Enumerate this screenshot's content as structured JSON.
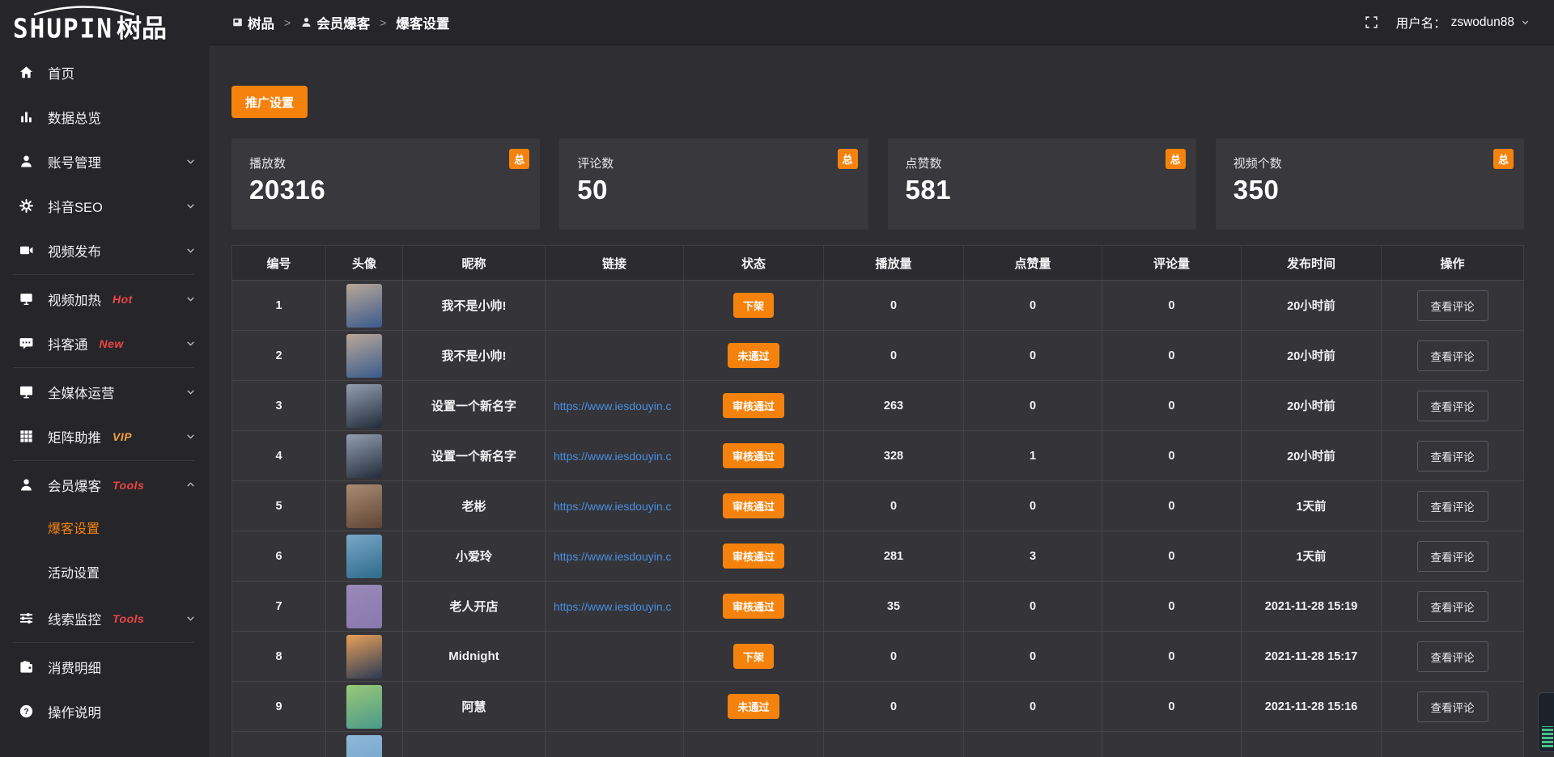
{
  "app": {
    "logo_en": "SHUPIN",
    "logo_cn": "树品"
  },
  "topbar": {
    "breadcrumb": [
      {
        "key": "shupin",
        "label": "树品",
        "icon": "dashboard-icon"
      },
      {
        "key": "member-baoke",
        "label": "会员爆客",
        "icon": "person-icon"
      },
      {
        "key": "baoke-settings",
        "label": "爆客设置",
        "icon": ""
      }
    ],
    "username_label": "用户名：",
    "username": "zswodun88"
  },
  "sidebar": {
    "items": [
      {
        "key": "home",
        "icon": "home-icon",
        "label": "首页"
      },
      {
        "key": "data-overview",
        "icon": "bar-chart-icon",
        "label": "数据总览"
      },
      {
        "key": "account-management",
        "icon": "user-icon",
        "label": "账号管理",
        "chevron": "down"
      },
      {
        "key": "douyin-seo",
        "icon": "gear-icon",
        "label": "抖音SEO",
        "chevron": "down"
      },
      {
        "key": "video-publish",
        "icon": "video-camera-icon",
        "label": "视频发布",
        "chevron": "down",
        "divider_after": true
      },
      {
        "key": "video-heat",
        "icon": "screen-icon",
        "label": "视频加热",
        "badge": "Hot",
        "badge_color": "#ee4545",
        "chevron": "down"
      },
      {
        "key": "douketong",
        "icon": "chat-bubble-icon",
        "label": "抖客通",
        "badge": "New",
        "badge_color": "#ee4545",
        "chevron": "down",
        "divider_after": true
      },
      {
        "key": "media-ops",
        "icon": "monitor-icon",
        "label": "全媒体运营",
        "chevron": "down"
      },
      {
        "key": "matrix-boost",
        "icon": "grid-icon",
        "label": "矩阵助推",
        "badge": "VIP",
        "badge_color": "#f2a33c",
        "chevron": "down",
        "divider_after": true
      },
      {
        "key": "member-baoke",
        "icon": "member-icon",
        "label": "会员爆客",
        "badge": "Tools",
        "badge_color": "#ee4545",
        "chevron": "up",
        "children": [
          {
            "key": "baoke-settings",
            "label": "爆客设置",
            "active": true
          },
          {
            "key": "activity-settings",
            "label": "活动设置"
          }
        ]
      },
      {
        "key": "clue-monitor",
        "icon": "sliders-icon",
        "label": "线索监控",
        "badge": "Tools",
        "badge_color": "#ee4545",
        "chevron": "down",
        "divider_after": true
      },
      {
        "key": "consume-detail",
        "icon": "wallet-icon",
        "label": "消费明细"
      },
      {
        "key": "help",
        "icon": "question-icon",
        "label": "操作说明"
      }
    ]
  },
  "main": {
    "promo_button_label": "推广设置",
    "stat_cards": [
      {
        "label": "播放数",
        "value": "20316",
        "badge": "总"
      },
      {
        "label": "评论数",
        "value": "50",
        "badge": "总"
      },
      {
        "label": "点赞数",
        "value": "581",
        "badge": "总"
      },
      {
        "label": "视频个数",
        "value": "350",
        "badge": "总"
      }
    ],
    "table": {
      "columns": [
        "编号",
        "头像",
        "昵称",
        "链接",
        "状态",
        "播放量",
        "点赞量",
        "评论量",
        "发布时间",
        "操作"
      ],
      "action_label": "查看评论",
      "rows": [
        {
          "id": "1",
          "nickname": "我不是小帅!",
          "link": "",
          "status": "下架",
          "plays": "0",
          "likes": "0",
          "comments": "0",
          "time": "20小时前",
          "avatar_colors": [
            "#b9a898",
            "#3a5a8c"
          ]
        },
        {
          "id": "2",
          "nickname": "我不是小帅!",
          "link": "",
          "status": "未通过",
          "plays": "0",
          "likes": "0",
          "comments": "0",
          "time": "20小时前",
          "avatar_colors": [
            "#b9a898",
            "#3a5a8c"
          ]
        },
        {
          "id": "3",
          "nickname": "设置一个新名字",
          "link": "https://www.iesdouyin.c",
          "status": "审核通过",
          "plays": "263",
          "likes": "0",
          "comments": "0",
          "time": "20小时前",
          "avatar_colors": [
            "#93a0b0",
            "#232b3a"
          ]
        },
        {
          "id": "4",
          "nickname": "设置一个新名字",
          "link": "https://www.iesdouyin.c",
          "status": "审核通过",
          "plays": "328",
          "likes": "1",
          "comments": "0",
          "time": "20小时前",
          "avatar_colors": [
            "#93a0b0",
            "#232b3a"
          ]
        },
        {
          "id": "5",
          "nickname": "老彬",
          "link": "https://www.iesdouyin.c",
          "status": "审核通过",
          "plays": "0",
          "likes": "0",
          "comments": "0",
          "time": "1天前",
          "avatar_colors": [
            "#a98c72",
            "#5f4534"
          ]
        },
        {
          "id": "6",
          "nickname": "小爱玲",
          "link": "https://www.iesdouyin.c",
          "status": "审核通过",
          "plays": "281",
          "likes": "3",
          "comments": "0",
          "time": "1天前",
          "avatar_colors": [
            "#7aa8c8",
            "#2d6a8a"
          ]
        },
        {
          "id": "7",
          "nickname": "老人开店",
          "link": "https://www.iesdouyin.c",
          "status": "审核通过",
          "plays": "35",
          "likes": "0",
          "comments": "0",
          "time": "2021-11-28 15:19",
          "avatar_colors": [
            "#9a8ab8",
            "#8878ae"
          ]
        },
        {
          "id": "8",
          "nickname": "Midnight",
          "link": "",
          "status": "下架",
          "plays": "0",
          "likes": "0",
          "comments": "0",
          "time": "2021-11-28 15:17",
          "avatar_colors": [
            "#e8a05a",
            "#2a3a55"
          ]
        },
        {
          "id": "9",
          "nickname": "阿慧",
          "link": "",
          "status": "未通过",
          "plays": "0",
          "likes": "0",
          "comments": "0",
          "time": "2021-11-28 15:16",
          "avatar_colors": [
            "#9ac878",
            "#4a9a8a"
          ]
        },
        {
          "id": "",
          "nickname": "",
          "link": "",
          "status": "",
          "plays": "",
          "likes": "",
          "comments": "",
          "time": "",
          "avatar_colors": [
            "#8fb8d8",
            "#6fa0c8"
          ]
        }
      ]
    }
  },
  "colors": {
    "accent_orange": "#f5820d",
    "link_blue": "#4a8fe0",
    "badge_red": "#ee4545",
    "badge_gold": "#f2a33c"
  }
}
